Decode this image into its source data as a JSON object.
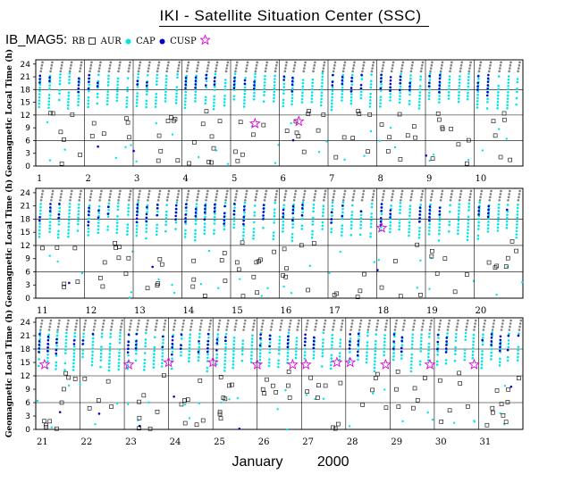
{
  "header": {
    "title": "IKI - Satellite Situation Center (SSC)",
    "dataset": "IB_MAG5:",
    "legend": [
      {
        "label": "RB",
        "marker": "open-square",
        "color": "#000000"
      },
      {
        "label": "AUR",
        "marker": "filled-circle",
        "color": "#00e5e5"
      },
      {
        "label": "CAP",
        "marker": "filled-circle",
        "color": "#0000cc"
      },
      {
        "label": "CUSP",
        "marker": "star",
        "color": "#dd00dd"
      }
    ]
  },
  "footer": {
    "month": "January",
    "year": "2000"
  },
  "chart_data": {
    "type": "scatter",
    "title": "IKI - Satellite Situation Center (SSC)",
    "ylabel": "Geomagnetic Local Time (h)",
    "xlabel": "January 2000",
    "y_ticks": [
      0,
      3,
      6,
      9,
      12,
      15,
      18,
      21,
      24
    ],
    "ylim": [
      0,
      25
    ],
    "colors": {
      "RB": "#000000",
      "AUR": "#00e5e5",
      "CAP": "#0000cc",
      "CUSP": "#dd00dd",
      "Track": "#808080"
    },
    "panels": [
      {
        "day_labels": [
          "1",
          "2",
          "3",
          "4",
          "5",
          "6",
          "7",
          "8",
          "9",
          "10"
        ]
      },
      {
        "day_labels": [
          "11",
          "12",
          "13",
          "14",
          "15",
          "16",
          "17",
          "18",
          "19",
          "20"
        ]
      },
      {
        "day_labels": [
          "21",
          "22",
          "23",
          "24",
          "25",
          "26",
          "27",
          "28",
          "29",
          "30",
          "31"
        ]
      }
    ],
    "cusp_events": [
      {
        "day": 5.5,
        "glt": 10
      },
      {
        "day": 6.4,
        "glt": 10.5
      },
      {
        "day": 18.1,
        "glt": 16
      },
      {
        "day": 21.2,
        "glt": 14.5
      },
      {
        "day": 23.1,
        "glt": 14.5
      },
      {
        "day": 24.0,
        "glt": 15
      },
      {
        "day": 25.0,
        "glt": 15
      },
      {
        "day": 26.0,
        "glt": 14.5
      },
      {
        "day": 26.8,
        "glt": 14.5
      },
      {
        "day": 27.1,
        "glt": 14.5
      },
      {
        "day": 27.8,
        "glt": 15
      },
      {
        "day": 28.1,
        "glt": 15
      },
      {
        "day": 28.9,
        "glt": 14.5
      },
      {
        "day": 29.9,
        "glt": 14.5
      },
      {
        "day": 30.9,
        "glt": 14.5
      }
    ]
  }
}
